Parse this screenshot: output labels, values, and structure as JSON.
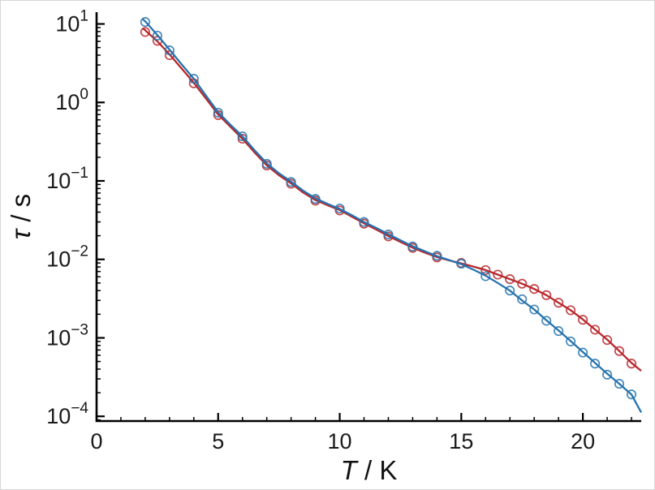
{
  "figure": {
    "background": "#ffffff",
    "axis_color": "#000000"
  },
  "chart_data": {
    "type": "scatter",
    "title": "",
    "xlabel": "T / K",
    "ylabel": "τ / s",
    "grid": false,
    "legend": "none",
    "x_axis": {
      "scale": "linear",
      "min": 0,
      "max": 22.4,
      "major_ticks": [
        0,
        5,
        10,
        15,
        20
      ],
      "minor_tick_step": 1
    },
    "y_axis": {
      "scale": "log",
      "min": 0.0001,
      "max": 14,
      "log_min": -4.06,
      "log_max": 1.15,
      "major_exponents": [
        1,
        0,
        -1,
        -2,
        -3,
        -4
      ]
    },
    "series": [
      {
        "name": "red-series",
        "color": "#b8272c",
        "marker": "open-circle",
        "x": [
          2,
          2.5,
          3,
          4,
          5,
          6,
          7,
          8,
          9,
          10,
          11,
          12,
          13,
          14,
          15,
          16,
          16.5,
          17,
          17.5,
          18,
          18.5,
          19,
          19.5,
          20,
          20.5,
          21,
          21.5,
          22
        ],
        "y": [
          7.9,
          6.1,
          4.0,
          1.75,
          0.69,
          0.345,
          0.157,
          0.092,
          0.056,
          0.042,
          0.0285,
          0.0196,
          0.014,
          0.0106,
          0.009,
          0.0073,
          0.0064,
          0.0056,
          0.0049,
          0.0042,
          0.0035,
          0.0028,
          0.00225,
          0.0017,
          0.00127,
          0.00094,
          0.00068,
          0.00047
        ],
        "fit_x": [
          1.9,
          2.0,
          2.5,
          3.0,
          3.5,
          4.0,
          4.5,
          5.0,
          5.5,
          6.0,
          6.5,
          7.0,
          7.5,
          8.0,
          8.5,
          9.0,
          9.5,
          10.0,
          10.5,
          11.0,
          11.5,
          12.0,
          12.5,
          13.0,
          13.5,
          14.0,
          14.5,
          15.0,
          15.5,
          16.0,
          16.5,
          17.0,
          17.5,
          18.0,
          18.5,
          19.0,
          19.5,
          20.0,
          20.5,
          21.0,
          21.5,
          22.0,
          22.4
        ],
        "fit_y": [
          8.8,
          8.3,
          6.0,
          4.1,
          2.7,
          1.78,
          1.12,
          0.7,
          0.49,
          0.345,
          0.23,
          0.158,
          0.118,
          0.093,
          0.071,
          0.057,
          0.049,
          0.0425,
          0.035,
          0.0288,
          0.024,
          0.0198,
          0.0167,
          0.0141,
          0.0122,
          0.0107,
          0.0097,
          0.0089,
          0.0081,
          0.0073,
          0.0064,
          0.0056,
          0.0049,
          0.0042,
          0.0035,
          0.0028,
          0.00225,
          0.00172,
          0.00128,
          0.00095,
          0.00068,
          0.00048,
          0.00038
        ]
      },
      {
        "name": "blue-series",
        "color": "#2673ae",
        "marker": "open-circle",
        "x": [
          2,
          2.5,
          3,
          4,
          5,
          6,
          7,
          8,
          9,
          10,
          11,
          12,
          13,
          14,
          15,
          16,
          17,
          17.5,
          18,
          18.5,
          19,
          19.5,
          20,
          20.5,
          21,
          21.5,
          22
        ],
        "y": [
          10.6,
          7.1,
          4.6,
          2.0,
          0.74,
          0.37,
          0.165,
          0.097,
          0.059,
          0.0445,
          0.03,
          0.0208,
          0.0146,
          0.0111,
          0.0088,
          0.0061,
          0.004,
          0.0031,
          0.0023,
          0.00165,
          0.00122,
          0.0009,
          0.00065,
          0.00047,
          0.00034,
          0.00026,
          0.00019
        ],
        "fit_x": [
          1.9,
          2.0,
          2.5,
          3.0,
          3.5,
          4.0,
          4.5,
          5.0,
          5.5,
          6.0,
          6.5,
          7.0,
          7.5,
          8.0,
          8.5,
          9.0,
          9.5,
          10.0,
          10.5,
          11.0,
          11.5,
          12.0,
          12.5,
          13.0,
          13.5,
          14.0,
          14.5,
          15.0,
          15.5,
          16.0,
          16.5,
          17.0,
          17.5,
          18.0,
          18.5,
          19.0,
          19.5,
          20.0,
          20.5,
          21.0,
          21.5,
          22.0,
          22.4
        ],
        "fit_y": [
          11.5,
          10.8,
          7.2,
          4.7,
          3.05,
          2.0,
          1.22,
          0.75,
          0.52,
          0.37,
          0.245,
          0.168,
          0.125,
          0.098,
          0.075,
          0.06,
          0.051,
          0.044,
          0.0365,
          0.03,
          0.0252,
          0.021,
          0.0175,
          0.0147,
          0.0127,
          0.011,
          0.0098,
          0.0087,
          0.0074,
          0.0062,
          0.005,
          0.004,
          0.003,
          0.0023,
          0.00168,
          0.00124,
          0.00091,
          0.00066,
          0.00048,
          0.00035,
          0.00026,
          0.00019,
          0.000112
        ]
      }
    ]
  }
}
